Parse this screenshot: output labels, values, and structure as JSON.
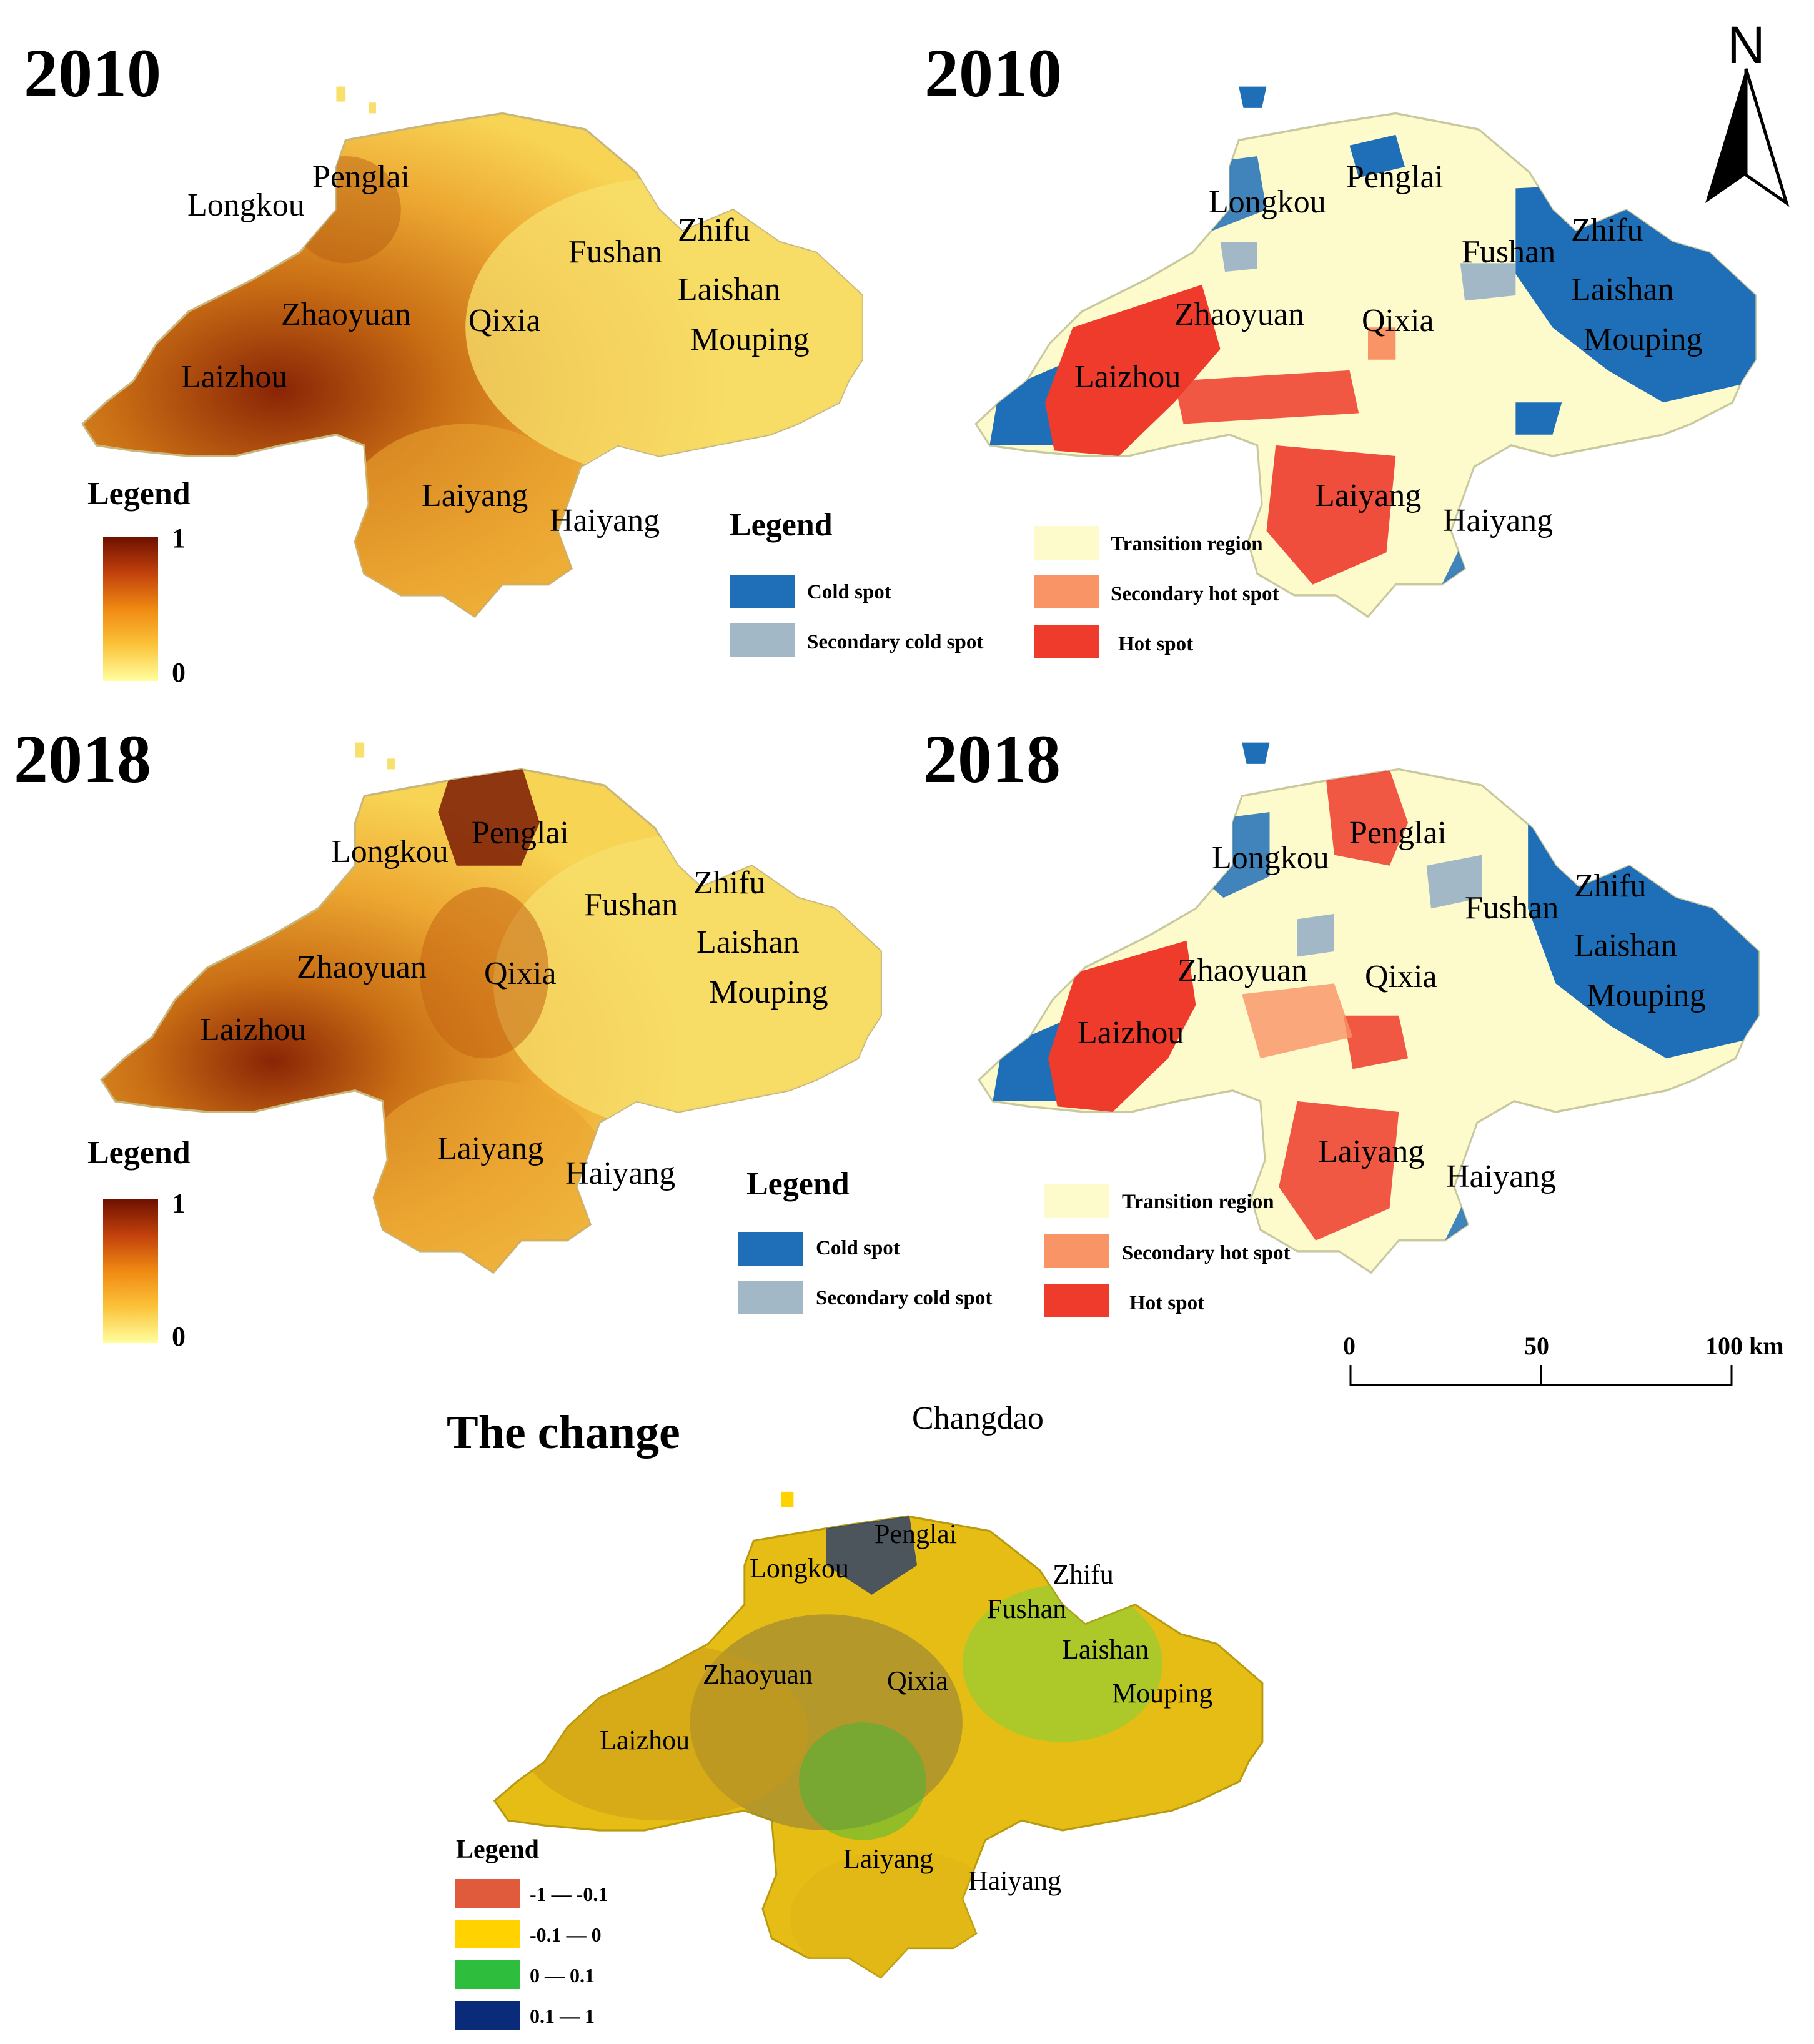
{
  "panels": {
    "p2010_value": {
      "title": "2010"
    },
    "p2010_hotspot": {
      "title": "2010"
    },
    "p2018_value": {
      "title": "2018"
    },
    "p2018_hotspot": {
      "title": "2018"
    },
    "change": {
      "title": "The change"
    }
  },
  "places": {
    "penglai": "Penglai",
    "longkou": "Longkou",
    "fushan": "Fushan",
    "zhifu": "Zhifu",
    "laishan": "Laishan",
    "mouping": "Mouping",
    "zhaoyuan": "Zhaoyuan",
    "qixia": "Qixia",
    "laizhou": "Laizhou",
    "laiyang": "Laiyang",
    "haiyang": "Haiyang",
    "changdao": "Changdao"
  },
  "value_legend": {
    "title": "Legend",
    "max": "1",
    "min": "0",
    "ramp_colors": [
      "#6e1100",
      "#c2410c",
      "#f08a12",
      "#fbc33a",
      "#ffff9e"
    ]
  },
  "hotspot_legend": {
    "title": "Legend",
    "classes": [
      {
        "label": "Cold spot",
        "color": "#1f6fb8"
      },
      {
        "label": "Secondary cold spot",
        "color": "#a3b8c6"
      },
      {
        "label": "Transition region",
        "color": "#fdfacb"
      },
      {
        "label": "Secondary hot spot",
        "color": "#f99467"
      },
      {
        "label": "Hot spot",
        "color": "#ee3b2c"
      }
    ]
  },
  "change_legend": {
    "title": "Legend",
    "classes": [
      {
        "label": "-1 — -0.1",
        "color": "#e05a3c"
      },
      {
        "label": "-0.1 — 0",
        "color": "#ffd200"
      },
      {
        "label": "0 — 0.1",
        "color": "#2ebd3c"
      },
      {
        "label": "0.1 — 1",
        "color": "#0a2a7a"
      }
    ]
  },
  "north_arrow": {
    "label": "N"
  },
  "scale_bar": {
    "ticks": [
      "0",
      "50",
      "100 km"
    ]
  }
}
